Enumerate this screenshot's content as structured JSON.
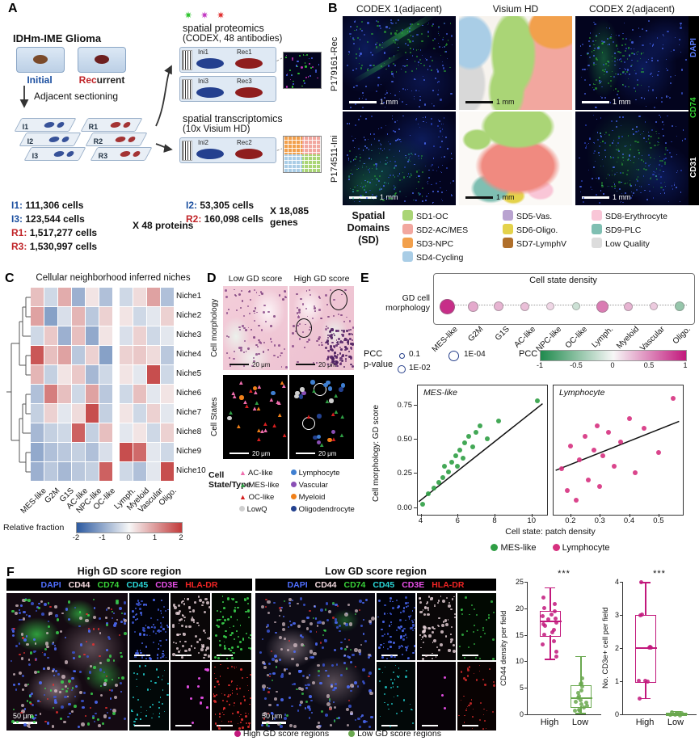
{
  "panelA": {
    "label": "A",
    "disease": "IDHm-IME Glioma",
    "initial_label": "Initial",
    "rec_red": "Rec",
    "rec_rest": "urrent",
    "sectioning_label": "Adjacent sectioning",
    "slides_initial": [
      "I1",
      "I2",
      "I3"
    ],
    "slides_recurrent": [
      "R1",
      "R2",
      "R3"
    ],
    "proteomics_title1": "spatial proteomics",
    "proteomics_title2": "(CODEX, 48 antibodies)",
    "prot_slides": [
      {
        "left": "Ini1",
        "right": "Rec1"
      },
      {
        "left": "Ini3",
        "right": "Rec3"
      }
    ],
    "trans_title1": "spatial transcriptomics",
    "trans_title2": "(10x Visium HD)",
    "trans_slides": [
      {
        "left": "Ini2",
        "right": "Rec2"
      }
    ],
    "protein_counts": [
      {
        "id": "I1:",
        "n": "111,306 cells",
        "color": "#1b4fa0"
      },
      {
        "id": "I3:",
        "n": "123,544 cells",
        "color": "#1b4fa0"
      },
      {
        "id": "R1:",
        "n": "1,517,277 cells",
        "color": "#c02428"
      },
      {
        "id": "R3:",
        "n": "1,530,997 cells",
        "color": "#c02428"
      }
    ],
    "protein_mult": "X 48 proteins",
    "gene_counts": [
      {
        "id": "I2:",
        "n": "53,305 cells",
        "color": "#1b4fa0"
      },
      {
        "id": "R2:",
        "n": "160,098 cells",
        "color": "#c02428"
      }
    ],
    "gene_mult": "X 18,085 genes"
  },
  "panelB": {
    "label": "B",
    "columns": [
      "CODEX 1(adjacent)",
      "Visium HD",
      "CODEX 2(adjacent)"
    ],
    "rows": [
      "P179161-Rec",
      "P174511-Ini"
    ],
    "scale_bar": "1 mm",
    "stains": [
      {
        "text": "DAPI",
        "color": "#5b7dff"
      },
      {
        "text": "CD74",
        "color": "#35d435"
      },
      {
        "text": "CD31",
        "color": "#ffffff"
      }
    ],
    "sd_title": [
      "Spatial",
      "Domains",
      "(SD)"
    ],
    "sd_columns": [
      [
        {
          "label": "SD1-OC",
          "color": "#aad576"
        },
        {
          "label": "SD2-AC/MES",
          "color": "#f2a79f"
        },
        {
          "label": "SD3-NPC",
          "color": "#f2a04c"
        },
        {
          "label": "SD4-Cycling",
          "color": "#a9cde6"
        }
      ],
      [
        {
          "label": "SD5-Vas.",
          "color": "#b9a3d0"
        },
        {
          "label": "SD6-Oligo.",
          "color": "#e4d24b"
        },
        {
          "label": "SD7-LymphV",
          "color": "#b06f2a"
        }
      ],
      [
        {
          "label": "SD8-Erythrocyte",
          "color": "#f9c6d7"
        },
        {
          "label": "SD9-PLC",
          "color": "#7fbfb2"
        },
        {
          "label": "Low Quality",
          "color": "#dcdcdc"
        }
      ]
    ]
  },
  "panelC": {
    "label": "C",
    "title": "Cellular neighborhood inferred niches",
    "row_labels": [
      "Niche1",
      "Niche2",
      "Niche3",
      "Niche4",
      "Niche5",
      "Niche6",
      "Niche7",
      "Niche8",
      "Niche9",
      "Niche10"
    ],
    "col_labels_left": [
      "MES-like",
      "G2M",
      "G1S",
      "AC-like",
      "NPC-like",
      "OC-like"
    ],
    "col_labels_right": [
      "Lymph.",
      "Myeloid",
      "Vascular",
      "Oligo."
    ],
    "values_left": [
      [
        0.6,
        -0.4,
        0.8,
        -0.9,
        0.2,
        -0.7
      ],
      [
        0.9,
        -1.1,
        -0.3,
        0.7,
        -0.6,
        0.4
      ],
      [
        -0.4,
        0.5,
        -0.9,
        0.6,
        -1.0,
        0.2
      ],
      [
        1.7,
        0.6,
        0.9,
        -0.6,
        0.4,
        -1.1
      ],
      [
        0.7,
        -0.5,
        0.2,
        0.5,
        -0.8,
        -0.4
      ],
      [
        -0.7,
        1.3,
        0.6,
        -0.4,
        0.9,
        -0.6
      ],
      [
        -0.5,
        0.4,
        -0.2,
        0.3,
        1.8,
        -0.5
      ],
      [
        -0.8,
        -0.5,
        -0.4,
        1.6,
        -0.5,
        0.6
      ],
      [
        -1.0,
        -0.7,
        -0.6,
        -0.5,
        -0.7,
        -0.3
      ],
      [
        -0.9,
        -0.6,
        -0.8,
        -0.6,
        -0.5,
        1.6
      ]
    ],
    "values_right": [
      [
        -0.4,
        0.3,
        0.9,
        -0.7
      ],
      [
        0.2,
        -0.4,
        -0.2,
        0.4
      ],
      [
        -0.3,
        0.4,
        -0.4,
        -0.2
      ],
      [
        0.4,
        0.5,
        0.3,
        -0.6
      ],
      [
        0.2,
        -0.2,
        1.8,
        -0.4
      ],
      [
        -0.4,
        0.6,
        -0.2,
        0.2
      ],
      [
        0.2,
        -0.4,
        0.4,
        -0.2
      ],
      [
        -0.2,
        0.2,
        -0.4,
        0.4
      ],
      [
        1.8,
        1.5,
        -0.2,
        -0.4
      ],
      [
        -0.4,
        -0.7,
        -0.2,
        1.8
      ]
    ],
    "vmin": -2,
    "vmax": 2,
    "colorbar_label": "Relative fraction",
    "colorbar_ticks": [
      "-2",
      "-1",
      "0",
      "1",
      "2"
    ]
  },
  "panelD": {
    "label": "D",
    "col_headers": [
      "Low GD score",
      "High GD score"
    ],
    "row_headers": [
      "Cell morphology",
      "Cell States"
    ],
    "scale_bar": "20 μm",
    "legend_title1": "Cell",
    "legend_title2": "State/Type",
    "legend_col1": [
      {
        "label": "AC-like",
        "marker": "triangle",
        "color": "#f06eae"
      },
      {
        "label": "MES-like",
        "marker": "triangle",
        "color": "#2f9e44"
      },
      {
        "label": "OC-like",
        "marker": "triangle",
        "color": "#d61f1f"
      },
      {
        "label": "LowQ",
        "marker": "circle",
        "color": "#cfcfcf"
      }
    ],
    "legend_col2": [
      {
        "label": "Lymphocyte",
        "marker": "circle",
        "color": "#3f7fd1"
      },
      {
        "label": "Vascular",
        "marker": "circle",
        "color": "#8a4fb5"
      },
      {
        "label": "Myeloid",
        "marker": "circle",
        "color": "#f08019"
      },
      {
        "label": "Oligodendrocyte",
        "marker": "circle",
        "color": "#23418f"
      }
    ]
  },
  "panelE": {
    "label": "E",
    "density_title": "Cell state density",
    "gd_label1": "GD cell",
    "gd_label2": "morphology",
    "dot_categories": [
      "MES-like",
      "G2M",
      "G1S",
      "AC-like",
      "NPC-like",
      "OC-like",
      "Lymph.",
      "Myeloid",
      "Vascular",
      "Oligo."
    ],
    "dot_pcc": [
      0.9,
      0.35,
      0.3,
      0.25,
      0.15,
      -0.2,
      0.55,
      0.3,
      0.2,
      -0.45
    ],
    "dot_size": [
      17,
      11,
      10,
      9,
      8,
      8,
      13,
      9,
      8,
      10
    ],
    "pval_legend_title1": "PCC",
    "pval_legend_title2": "p-value",
    "pval_items": [
      {
        "label": "0.1",
        "size": 5
      },
      {
        "label": "1E-02",
        "size": 8
      },
      {
        "label": "1E-04",
        "size": 11
      }
    ],
    "pcc_bar_label": "PCC",
    "pcc_ticks": [
      "-1",
      "-0.5",
      "0",
      "0.5",
      "1"
    ],
    "scatter": {
      "ylabel": "Cell morphology: GD score",
      "xlabel": "Cell state: patch density",
      "yticks": [
        0.75,
        0.5,
        0.25,
        0
      ],
      "ytick_labels": [
        "0.75",
        "0.50",
        "0.25",
        "0.00"
      ],
      "panels": [
        {
          "name": "MES-like",
          "color": "#2f9e44",
          "xticks": [
            4,
            6,
            8,
            10
          ],
          "xmin": 3.8,
          "xmax": 10.8,
          "ymin": -0.05,
          "ymax": 0.9,
          "points": [
            [
              4.1,
              0.02
            ],
            [
              4.4,
              0.1
            ],
            [
              4.7,
              0.14
            ],
            [
              5.0,
              0.18
            ],
            [
              5.2,
              0.22
            ],
            [
              5.3,
              0.3
            ],
            [
              5.5,
              0.26
            ],
            [
              5.7,
              0.33
            ],
            [
              5.9,
              0.38
            ],
            [
              6.0,
              0.3
            ],
            [
              6.1,
              0.42
            ],
            [
              6.3,
              0.36
            ],
            [
              6.4,
              0.47
            ],
            [
              6.6,
              0.52
            ],
            [
              6.8,
              0.44
            ],
            [
              7.0,
              0.55
            ],
            [
              7.2,
              0.6
            ],
            [
              7.6,
              0.5
            ],
            [
              8.2,
              0.63
            ],
            [
              10.3,
              0.78
            ]
          ],
          "trend": [
            [
              3.9,
              0.04
            ],
            [
              10.6,
              0.76
            ]
          ]
        },
        {
          "name": "Lymphocyte",
          "color": "#d6317f",
          "xticks": [
            0.2,
            0.3,
            0.4,
            0.5
          ],
          "xmin": 0.14,
          "xmax": 0.58,
          "ymin": -0.05,
          "ymax": 0.9,
          "points": [
            [
              0.17,
              0.28
            ],
            [
              0.19,
              0.12
            ],
            [
              0.2,
              0.45
            ],
            [
              0.22,
              0.05
            ],
            [
              0.23,
              0.35
            ],
            [
              0.25,
              0.52
            ],
            [
              0.26,
              0.2
            ],
            [
              0.28,
              0.42
            ],
            [
              0.29,
              0.6
            ],
            [
              0.3,
              0.15
            ],
            [
              0.31,
              0.38
            ],
            [
              0.33,
              0.55
            ],
            [
              0.35,
              0.3
            ],
            [
              0.37,
              0.48
            ],
            [
              0.4,
              0.65
            ],
            [
              0.42,
              0.25
            ],
            [
              0.45,
              0.58
            ],
            [
              0.5,
              0.4
            ],
            [
              0.55,
              0.8
            ]
          ],
          "trend": [
            [
              0.15,
              0.27
            ],
            [
              0.57,
              0.63
            ]
          ]
        }
      ]
    },
    "series_legend": [
      {
        "label": "MES-like",
        "color": "#2f9e44"
      },
      {
        "label": "Lymphocyte",
        "color": "#d6317f"
      }
    ]
  },
  "panelF": {
    "label": "F",
    "region_titles": [
      "High GD score region",
      "Low GD score region"
    ],
    "markers": [
      {
        "text": "DAPI",
        "color": "#4f6fff"
      },
      {
        "text": "CD44",
        "color": "#f3d9de"
      },
      {
        "text": "CD74",
        "color": "#39d439"
      },
      {
        "text": "CD45",
        "color": "#2ad8d8"
      },
      {
        "text": "CD3E",
        "color": "#e84fe8"
      },
      {
        "text": "HLA-DR",
        "color": "#ef2424"
      }
    ],
    "scale_bar": "50 μm",
    "boxplots": [
      {
        "ylabel": "CD44 density per field",
        "sig": "***",
        "ymin": 0,
        "ymax": 25,
        "yticks": [
          0,
          5,
          10,
          15,
          20,
          25
        ],
        "groups": [
          {
            "name": "High",
            "color": "#c2187c",
            "min": 10.5,
            "q1": 15,
            "med": 17.5,
            "q3": 19.5,
            "max": 24,
            "points": [
              22,
              21,
              20,
              19.5,
              19,
              18.5,
              18,
              17.8,
              17.5,
              17,
              16.5,
              16,
              15.5,
              15,
              14,
              13,
              12,
              11
            ]
          },
          {
            "name": "Low",
            "color": "#6aa84f",
            "min": 0.3,
            "q1": 1.5,
            "med": 3,
            "q3": 5.5,
            "max": 11,
            "points": [
              7,
              6,
              5.5,
              5,
              4.5,
              4,
              3.5,
              3,
              2.8,
              2.5,
              2,
              1.8,
              1.5,
              1.2,
              1,
              0.8,
              0.5
            ]
          }
        ]
      },
      {
        "ylabel": "No. CD3e+ cell per field",
        "sig": "***",
        "ymin": 0,
        "ymax": 4,
        "yticks": [
          0,
          1,
          2,
          3,
          4
        ],
        "groups": [
          {
            "name": "High",
            "color": "#c2187c",
            "min": 0.5,
            "q1": 1,
            "med": 2,
            "q3": 3,
            "max": 4,
            "points": [
              4,
              3,
              3,
              2,
              2,
              2,
              1,
              1,
              1,
              0.5
            ]
          },
          {
            "name": "Low",
            "color": "#6aa84f",
            "min": 0,
            "q1": 0,
            "med": 0,
            "q3": 0.05,
            "max": 0.1,
            "points": [
              0,
              0,
              0,
              0,
              0,
              0,
              0,
              0.05,
              0.1
            ]
          }
        ]
      }
    ],
    "bottom_legend": [
      {
        "label": "High GD score regions",
        "color": "#c2187c"
      },
      {
        "label": "Low GD score regions",
        "color": "#6aa84f"
      }
    ]
  }
}
